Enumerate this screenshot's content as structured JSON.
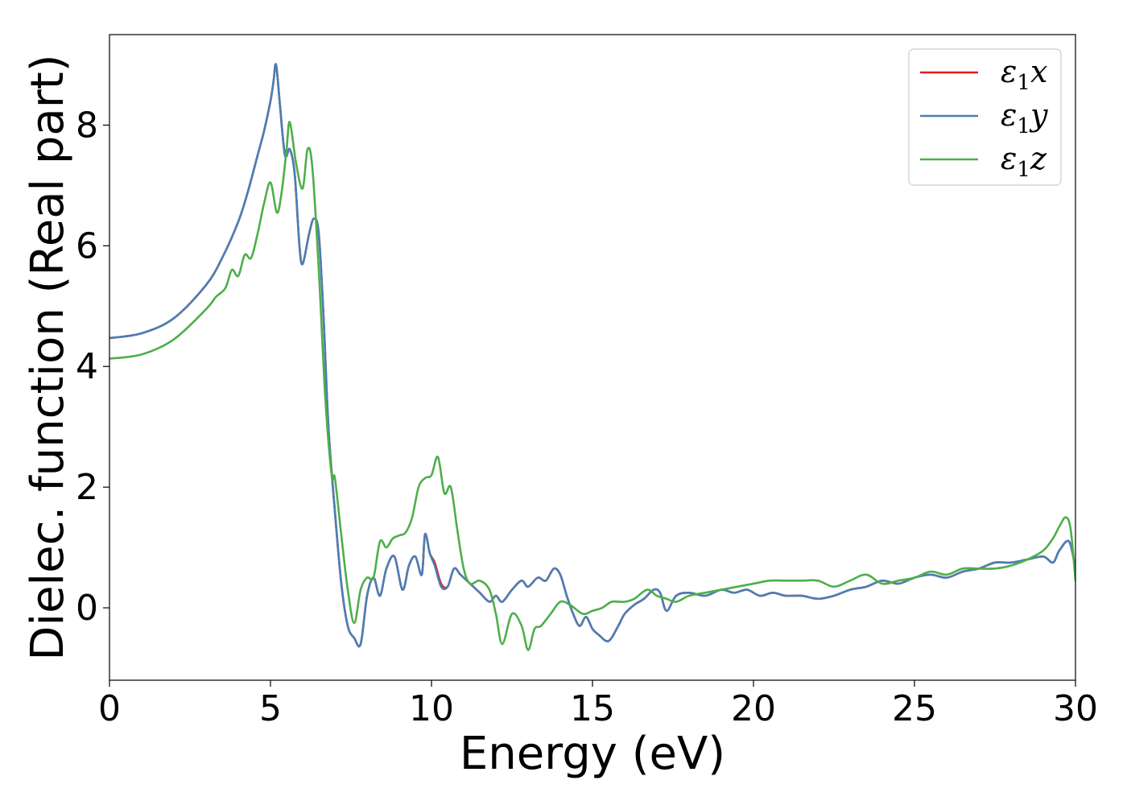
{
  "chart_data": {
    "type": "line",
    "title": "",
    "xlabel": "Energy (eV)",
    "ylabel": "Dielec. function (Real part)",
    "xlim": [
      0,
      30
    ],
    "ylim": [
      -1.2,
      9.5
    ],
    "xticks": [
      0,
      5,
      10,
      15,
      20,
      25,
      30
    ],
    "yticks": [
      0,
      2,
      4,
      6,
      8
    ],
    "grid": false,
    "legend_position": "top-right",
    "series": [
      {
        "name": "ε1x",
        "legend": {
          "base": "ε",
          "sub": "1",
          "var": "x"
        },
        "color": "#e41a1c",
        "x": [
          0,
          1,
          2,
          3,
          3.5,
          4,
          4.3,
          4.6,
          4.8,
          5.0,
          5.1,
          5.15,
          5.2,
          5.3,
          5.45,
          5.6,
          5.75,
          5.9,
          6.0,
          6.2,
          6.35,
          6.5,
          6.65,
          6.8,
          7.0,
          7.2,
          7.4,
          7.6,
          7.8,
          8.0,
          8.2,
          8.4,
          8.6,
          8.85,
          9.1,
          9.3,
          9.5,
          9.7,
          9.8,
          9.95,
          10.1,
          10.3,
          10.5,
          10.7,
          10.9,
          11.2,
          11.5,
          11.8,
          12.0,
          12.2,
          12.5,
          12.8,
          13.0,
          13.3,
          13.55,
          13.8,
          14.0,
          14.2,
          14.4,
          14.6,
          14.8,
          15.0,
          15.2,
          15.5,
          15.8,
          16.0,
          16.3,
          16.6,
          16.9,
          17.1,
          17.3,
          17.6,
          18.0,
          18.5,
          19.0,
          19.4,
          19.8,
          20.2,
          20.6,
          21.0,
          21.5,
          22.0,
          22.5,
          23.0,
          23.5,
          24.0,
          24.5,
          25.0,
          25.5,
          26.0,
          26.5,
          27.0,
          27.5,
          28.0,
          28.5,
          29.0,
          29.3,
          29.5,
          29.8,
          30.0
        ],
        "y": [
          4.47,
          4.55,
          4.8,
          5.35,
          5.8,
          6.4,
          6.9,
          7.5,
          7.9,
          8.4,
          8.75,
          9.0,
          8.9,
          8.3,
          7.5,
          7.6,
          7.2,
          6.0,
          5.7,
          6.2,
          6.45,
          6.2,
          4.8,
          3.0,
          1.6,
          0.4,
          -0.3,
          -0.5,
          -0.6,
          0.2,
          0.5,
          0.2,
          0.65,
          0.85,
          0.3,
          0.7,
          0.85,
          0.55,
          1.22,
          0.9,
          0.75,
          0.4,
          0.35,
          0.65,
          0.55,
          0.4,
          0.25,
          0.1,
          0.2,
          0.1,
          0.3,
          0.45,
          0.35,
          0.5,
          0.45,
          0.65,
          0.55,
          0.2,
          -0.1,
          -0.3,
          -0.15,
          -0.35,
          -0.45,
          -0.55,
          -0.3,
          -0.1,
          0.05,
          0.15,
          0.3,
          0.25,
          -0.05,
          0.2,
          0.25,
          0.2,
          0.3,
          0.25,
          0.3,
          0.2,
          0.25,
          0.2,
          0.2,
          0.15,
          0.2,
          0.3,
          0.35,
          0.45,
          0.4,
          0.5,
          0.55,
          0.5,
          0.6,
          0.65,
          0.75,
          0.75,
          0.8,
          0.85,
          0.75,
          0.95,
          1.1,
          0.65
        ]
      },
      {
        "name": "ε1y",
        "legend": {
          "base": "ε",
          "sub": "1",
          "var": "y"
        },
        "color": "#4a7fb5",
        "x": [
          0,
          1,
          2,
          3,
          3.5,
          4,
          4.3,
          4.6,
          4.8,
          5.0,
          5.1,
          5.15,
          5.2,
          5.3,
          5.45,
          5.6,
          5.75,
          5.9,
          6.0,
          6.2,
          6.35,
          6.5,
          6.65,
          6.8,
          7.0,
          7.2,
          7.4,
          7.6,
          7.8,
          8.0,
          8.2,
          8.4,
          8.6,
          8.85,
          9.1,
          9.3,
          9.5,
          9.7,
          9.8,
          9.95,
          10.1,
          10.3,
          10.5,
          10.7,
          10.9,
          11.2,
          11.5,
          11.8,
          12.0,
          12.2,
          12.5,
          12.8,
          13.0,
          13.3,
          13.55,
          13.8,
          14.0,
          14.2,
          14.4,
          14.6,
          14.8,
          15.0,
          15.2,
          15.5,
          15.8,
          16.0,
          16.3,
          16.6,
          16.9,
          17.1,
          17.3,
          17.6,
          18.0,
          18.5,
          19.0,
          19.4,
          19.8,
          20.2,
          20.6,
          21.0,
          21.5,
          22.0,
          22.5,
          23.0,
          23.5,
          24.0,
          24.5,
          25.0,
          25.5,
          26.0,
          26.5,
          27.0,
          27.5,
          28.0,
          28.5,
          29.0,
          29.3,
          29.5,
          29.8,
          30.0
        ],
        "y": [
          4.47,
          4.55,
          4.8,
          5.35,
          5.8,
          6.4,
          6.9,
          7.5,
          7.9,
          8.4,
          8.75,
          9.0,
          8.9,
          8.3,
          7.5,
          7.6,
          7.2,
          6.0,
          5.7,
          6.2,
          6.45,
          6.2,
          4.8,
          3.0,
          1.6,
          0.4,
          -0.3,
          -0.5,
          -0.6,
          0.2,
          0.5,
          0.2,
          0.65,
          0.85,
          0.3,
          0.7,
          0.85,
          0.55,
          1.22,
          0.9,
          0.7,
          0.35,
          0.35,
          0.65,
          0.55,
          0.4,
          0.25,
          0.1,
          0.2,
          0.1,
          0.3,
          0.45,
          0.35,
          0.5,
          0.45,
          0.65,
          0.55,
          0.2,
          -0.1,
          -0.3,
          -0.15,
          -0.35,
          -0.45,
          -0.55,
          -0.3,
          -0.1,
          0.05,
          0.15,
          0.3,
          0.25,
          -0.05,
          0.2,
          0.25,
          0.2,
          0.3,
          0.25,
          0.3,
          0.2,
          0.25,
          0.2,
          0.2,
          0.15,
          0.2,
          0.3,
          0.35,
          0.45,
          0.4,
          0.5,
          0.55,
          0.5,
          0.6,
          0.65,
          0.75,
          0.75,
          0.8,
          0.85,
          0.75,
          0.95,
          1.1,
          0.65
        ]
      },
      {
        "name": "ε1z",
        "legend": {
          "base": "ε",
          "sub": "1",
          "var": "z"
        },
        "color": "#4daf4a",
        "x": [
          0,
          1,
          2,
          3,
          3.3,
          3.6,
          3.8,
          4.0,
          4.2,
          4.4,
          4.6,
          4.8,
          5.0,
          5.2,
          5.35,
          5.5,
          5.6,
          5.8,
          6.0,
          6.15,
          6.3,
          6.5,
          6.7,
          6.9,
          7.0,
          7.2,
          7.4,
          7.6,
          7.8,
          8.0,
          8.2,
          8.4,
          8.6,
          8.8,
          9.0,
          9.2,
          9.4,
          9.6,
          9.8,
          10.0,
          10.2,
          10.4,
          10.6,
          10.8,
          11.0,
          11.2,
          11.5,
          11.8,
          12.0,
          12.2,
          12.5,
          12.8,
          13.0,
          13.2,
          13.4,
          13.7,
          14.0,
          14.3,
          14.7,
          15.0,
          15.3,
          15.6,
          16.0,
          16.3,
          16.7,
          17.0,
          17.3,
          17.6,
          18.0,
          18.5,
          19.0,
          19.5,
          20.0,
          20.5,
          21.0,
          21.5,
          22.0,
          22.5,
          23.0,
          23.5,
          24.0,
          24.5,
          25.0,
          25.5,
          26.0,
          26.5,
          27.0,
          27.5,
          28.0,
          28.5,
          29.0,
          29.3,
          29.5,
          29.7,
          29.85,
          30.0
        ],
        "y": [
          4.13,
          4.2,
          4.45,
          4.95,
          5.15,
          5.3,
          5.6,
          5.5,
          5.85,
          5.8,
          6.2,
          6.7,
          7.05,
          6.55,
          6.9,
          7.6,
          8.05,
          7.35,
          6.95,
          7.6,
          7.3,
          5.6,
          3.5,
          2.2,
          2.15,
          1.2,
          0.3,
          -0.25,
          0.3,
          0.5,
          0.5,
          1.1,
          1.0,
          1.15,
          1.2,
          1.25,
          1.5,
          2.0,
          2.15,
          2.2,
          2.5,
          1.9,
          2.0,
          1.3,
          0.65,
          0.4,
          0.45,
          0.3,
          -0.1,
          -0.6,
          -0.1,
          -0.3,
          -0.7,
          -0.35,
          -0.3,
          -0.1,
          0.1,
          0.05,
          -0.1,
          -0.05,
          0.0,
          0.1,
          0.1,
          0.15,
          0.3,
          0.2,
          0.15,
          0.1,
          0.2,
          0.25,
          0.3,
          0.35,
          0.4,
          0.45,
          0.45,
          0.45,
          0.45,
          0.35,
          0.45,
          0.55,
          0.4,
          0.45,
          0.5,
          0.6,
          0.55,
          0.65,
          0.65,
          0.65,
          0.7,
          0.8,
          0.95,
          1.15,
          1.35,
          1.5,
          1.3,
          0.45
        ]
      }
    ]
  }
}
